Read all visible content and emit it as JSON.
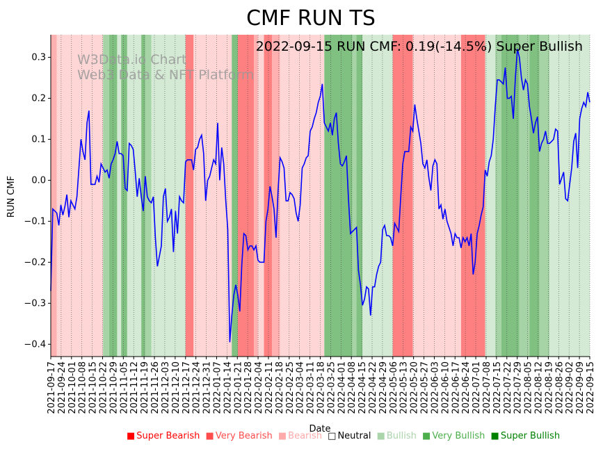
{
  "chart_data": {
    "type": "line",
    "title": "CMF RUN TS",
    "annotation": "2022-09-15 RUN CMF: 0.19(-14.5%) Super Bullish",
    "watermark": [
      "W3Data.io Chart",
      "Web3 Data & NFT Platform"
    ],
    "xlabel": "Date",
    "ylabel": "RUN CMF",
    "ylim": [
      -0.43,
      0.355
    ],
    "yticks": [
      0.3,
      0.2,
      0.1,
      0.0,
      -0.1,
      -0.2,
      -0.3,
      -0.4
    ],
    "ytick_labels": [
      "0.3",
      "0.2",
      "0.1",
      "0.0",
      "−0.1",
      "−0.2",
      "−0.3",
      "−0.4"
    ],
    "x_start": "2021-09-17",
    "x_end": "2022-09-15",
    "xtick_labels": [
      "2021-09-17",
      "2021-09-24",
      "2021-10-01",
      "2021-10-08",
      "2021-10-15",
      "2021-10-22",
      "2021-10-29",
      "2021-11-05",
      "2021-11-12",
      "2021-11-19",
      "2021-11-26",
      "2021-12-03",
      "2021-12-10",
      "2021-12-17",
      "2021-12-24",
      "2021-12-31",
      "2022-01-07",
      "2022-01-14",
      "2022-01-21",
      "2022-01-28",
      "2022-02-04",
      "2022-02-11",
      "2022-02-18",
      "2022-02-25",
      "2022-03-04",
      "2022-03-11",
      "2022-03-18",
      "2022-03-25",
      "2022-04-01",
      "2022-04-08",
      "2022-04-15",
      "2022-04-22",
      "2022-04-29",
      "2022-05-06",
      "2022-05-13",
      "2022-05-20",
      "2022-05-27",
      "2022-06-03",
      "2022-06-10",
      "2022-06-17",
      "2022-06-24",
      "2022-07-01",
      "2022-07-08",
      "2022-07-15",
      "2022-07-22",
      "2022-07-29",
      "2022-08-05",
      "2022-08-12",
      "2022-08-19",
      "2022-08-26",
      "2022-09-02",
      "2022-09-09",
      "2022-09-15"
    ],
    "series": [
      {
        "name": "RUN CMF",
        "color": "#0000ff",
        "values": [
          -0.27,
          -0.07,
          -0.075,
          -0.08,
          -0.11,
          -0.06,
          -0.085,
          -0.065,
          -0.035,
          -0.09,
          -0.05,
          -0.06,
          -0.07,
          -0.04,
          0.03,
          0.1,
          0.07,
          0.05,
          0.14,
          0.17,
          -0.01,
          -0.01,
          -0.01,
          0.01,
          -0.005,
          0.04,
          0.03,
          0.02,
          0.025,
          0.005,
          0.04,
          0.05,
          0.065,
          0.095,
          0.065,
          0.065,
          0.06,
          -0.02,
          -0.025,
          0.09,
          0.085,
          0.075,
          0.02,
          -0.04,
          0.005,
          -0.04,
          -0.075,
          0.01,
          -0.04,
          -0.05,
          -0.055,
          -0.04,
          -0.14,
          -0.21,
          -0.185,
          -0.16,
          -0.04,
          -0.02,
          -0.1,
          -0.09,
          -0.07,
          -0.175,
          -0.075,
          -0.13,
          -0.04,
          -0.05,
          -0.055,
          0.045,
          0.05,
          0.05,
          0.05,
          0.025,
          0.075,
          0.08,
          0.1,
          0.11,
          0.065,
          -0.05,
          0.0,
          0.01,
          0.03,
          0.05,
          0.04,
          0.14,
          0.0,
          0.08,
          0.04,
          -0.05,
          -0.12,
          -0.395,
          -0.33,
          -0.28,
          -0.255,
          -0.28,
          -0.32,
          -0.205,
          -0.13,
          -0.135,
          -0.17,
          -0.16,
          -0.16,
          -0.17,
          -0.16,
          -0.195,
          -0.2,
          -0.2,
          -0.2,
          -0.1,
          -0.07,
          -0.015,
          -0.04,
          -0.07,
          -0.14,
          -0.025,
          0.055,
          0.045,
          0.03,
          -0.05,
          -0.05,
          -0.03,
          -0.035,
          -0.045,
          -0.08,
          -0.1,
          -0.06,
          0.03,
          0.04,
          0.055,
          0.06,
          0.12,
          0.13,
          0.15,
          0.165,
          0.19,
          0.205,
          0.235,
          0.14,
          0.13,
          0.12,
          0.14,
          0.11,
          0.15,
          0.165,
          0.09,
          0.04,
          0.035,
          0.045,
          0.06,
          -0.045,
          -0.13,
          -0.125,
          -0.12,
          -0.115,
          -0.22,
          -0.255,
          -0.305,
          -0.29,
          -0.26,
          -0.265,
          -0.33,
          -0.26,
          -0.26,
          -0.23,
          -0.21,
          -0.2,
          -0.12,
          -0.11,
          -0.135,
          -0.135,
          -0.14,
          -0.16,
          -0.105,
          -0.115,
          -0.125,
          -0.04,
          0.04,
          0.07,
          0.07,
          0.07,
          0.13,
          0.12,
          0.185,
          0.15,
          0.12,
          0.09,
          0.04,
          0.03,
          0.05,
          0.005,
          -0.025,
          0.035,
          0.05,
          0.04,
          -0.07,
          -0.06,
          -0.095,
          -0.07,
          -0.1,
          -0.115,
          -0.13,
          -0.16,
          -0.13,
          -0.14,
          -0.14,
          -0.165,
          -0.14,
          -0.15,
          -0.14,
          -0.16,
          -0.13,
          -0.23,
          -0.2,
          -0.13,
          -0.11,
          -0.085,
          -0.065,
          0.025,
          0.01,
          0.045,
          0.06,
          0.1,
          0.18,
          0.245,
          0.245,
          0.24,
          0.235,
          0.275,
          0.2,
          0.2,
          0.205,
          0.15,
          0.25,
          0.32,
          0.3,
          0.25,
          0.22,
          0.245,
          0.235,
          0.18,
          0.15,
          0.115,
          0.14,
          0.155,
          0.07,
          0.09,
          0.1,
          0.12,
          0.09,
          0.09,
          0.095,
          0.1,
          0.125,
          0.12,
          -0.01,
          0.005,
          0.02,
          -0.045,
          -0.05,
          -0.01,
          0.03,
          0.095,
          0.115,
          0.03,
          0.15,
          0.175,
          0.19,
          0.18,
          0.215,
          0.19
        ]
      }
    ],
    "regions": [
      {
        "from": 0,
        "to": 3,
        "category": "Very Bearish"
      },
      {
        "from": 3,
        "to": 26,
        "category": "Bearish"
      },
      {
        "from": 26,
        "to": 29,
        "category": "Very Bullish"
      },
      {
        "from": 29,
        "to": 33,
        "category": "Super Bullish"
      },
      {
        "from": 33,
        "to": 35,
        "category": "Bullish"
      },
      {
        "from": 35,
        "to": 38,
        "category": "Super Bullish"
      },
      {
        "from": 38,
        "to": 45,
        "category": "Bullish"
      },
      {
        "from": 45,
        "to": 47,
        "category": "Super Bullish"
      },
      {
        "from": 47,
        "to": 50,
        "category": "Very Bullish"
      },
      {
        "from": 50,
        "to": 67,
        "category": "Bullish"
      },
      {
        "from": 67,
        "to": 71,
        "category": "Super Bearish"
      },
      {
        "from": 71,
        "to": 90,
        "category": "Bearish"
      },
      {
        "from": 90,
        "to": 93,
        "category": "Super Bullish"
      },
      {
        "from": 93,
        "to": 101,
        "category": "Super Bearish"
      },
      {
        "from": 101,
        "to": 103,
        "category": "Very Bearish"
      },
      {
        "from": 103,
        "to": 106,
        "category": "Bearish"
      },
      {
        "from": 106,
        "to": 110,
        "category": "Super Bearish"
      },
      {
        "from": 110,
        "to": 114,
        "category": "Very Bearish"
      },
      {
        "from": 114,
        "to": 136,
        "category": "Bearish"
      },
      {
        "from": 136,
        "to": 150,
        "category": "Super Bullish"
      },
      {
        "from": 150,
        "to": 152,
        "category": "Very Bullish"
      },
      {
        "from": 152,
        "to": 155,
        "category": "Super Bullish"
      },
      {
        "from": 155,
        "to": 170,
        "category": "Bullish"
      },
      {
        "from": 170,
        "to": 180,
        "category": "Super Bearish"
      },
      {
        "from": 180,
        "to": 204,
        "category": "Bearish"
      },
      {
        "from": 204,
        "to": 216,
        "category": "Super Bearish"
      },
      {
        "from": 216,
        "to": 221,
        "category": "Bullish"
      },
      {
        "from": 221,
        "to": 224,
        "category": "Very Bullish"
      },
      {
        "from": 224,
        "to": 233,
        "category": "Super Bullish"
      },
      {
        "from": 233,
        "to": 238,
        "category": "Very Bullish"
      },
      {
        "from": 238,
        "to": 243,
        "category": "Super Bullish"
      },
      {
        "from": 243,
        "to": 248,
        "category": "Very Bullish"
      },
      {
        "from": 248,
        "to": 269,
        "category": "Bullish"
      },
      {
        "from": 269,
        "to": 273,
        "category": "Super Bullish"
      }
    ],
    "legend": [
      {
        "label": "Super Bearish",
        "symbol": "■",
        "color": "#ff0000"
      },
      {
        "label": "Very Bearish",
        "symbol": "■",
        "color": "#ff4c4c"
      },
      {
        "label": "Bearish",
        "symbol": "■",
        "color": "#ffaaaa"
      },
      {
        "label": "Neutral",
        "symbol": "□",
        "color": "#000000"
      },
      {
        "label": "Bullish",
        "symbol": "■",
        "color": "#aad4aa"
      },
      {
        "label": "Very Bullish",
        "symbol": "■",
        "color": "#4caf4c"
      },
      {
        "label": "Super Bullish",
        "symbol": "■",
        "color": "#008000"
      }
    ],
    "region_colors": {
      "Super Bearish": "#ff8080",
      "Very Bearish": "#ffb0b0",
      "Bearish": "#ffd6d6",
      "Neutral": "#ffffff",
      "Bullish": "#d4ead4",
      "Very Bullish": "#a6d4a6",
      "Super Bullish": "#80c080"
    },
    "grid": "vertical dotted"
  }
}
